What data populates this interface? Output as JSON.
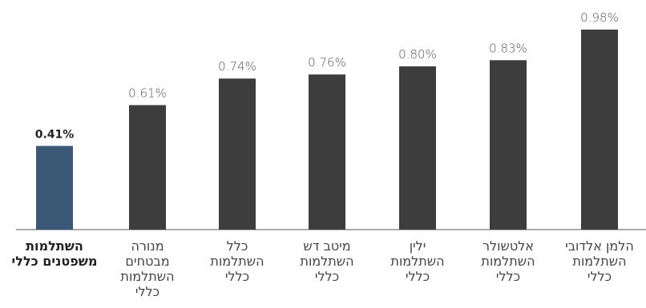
{
  "chart_data": {
    "type": "bar",
    "categories": [
      "השתלמות\nמשפטנים כללי",
      "מנורה\nמבטחים\nהשתלמות\nכללי",
      "כלל\nהשתלמות\nכללי",
      "מיטב דש\nהשתלמות\nכללי",
      "ילין\nהשתלמות\nכללי",
      "אלטשולר\nהשתלמות\nכללי",
      "הלמן אלדובי\nהשתלמות\nכללי"
    ],
    "values": [
      0.41,
      0.61,
      0.74,
      0.76,
      0.8,
      0.83,
      0.98
    ],
    "value_labels": [
      "0.41%",
      "0.61%",
      "0.74%",
      "0.76%",
      "0.80%",
      "0.83%",
      "0.98%"
    ],
    "colors": [
      "#3b5977",
      "#3d3d3d",
      "#3d3d3d",
      "#3d3d3d",
      "#3d3d3d",
      "#3d3d3d",
      "#3d3d3d"
    ]
  }
}
